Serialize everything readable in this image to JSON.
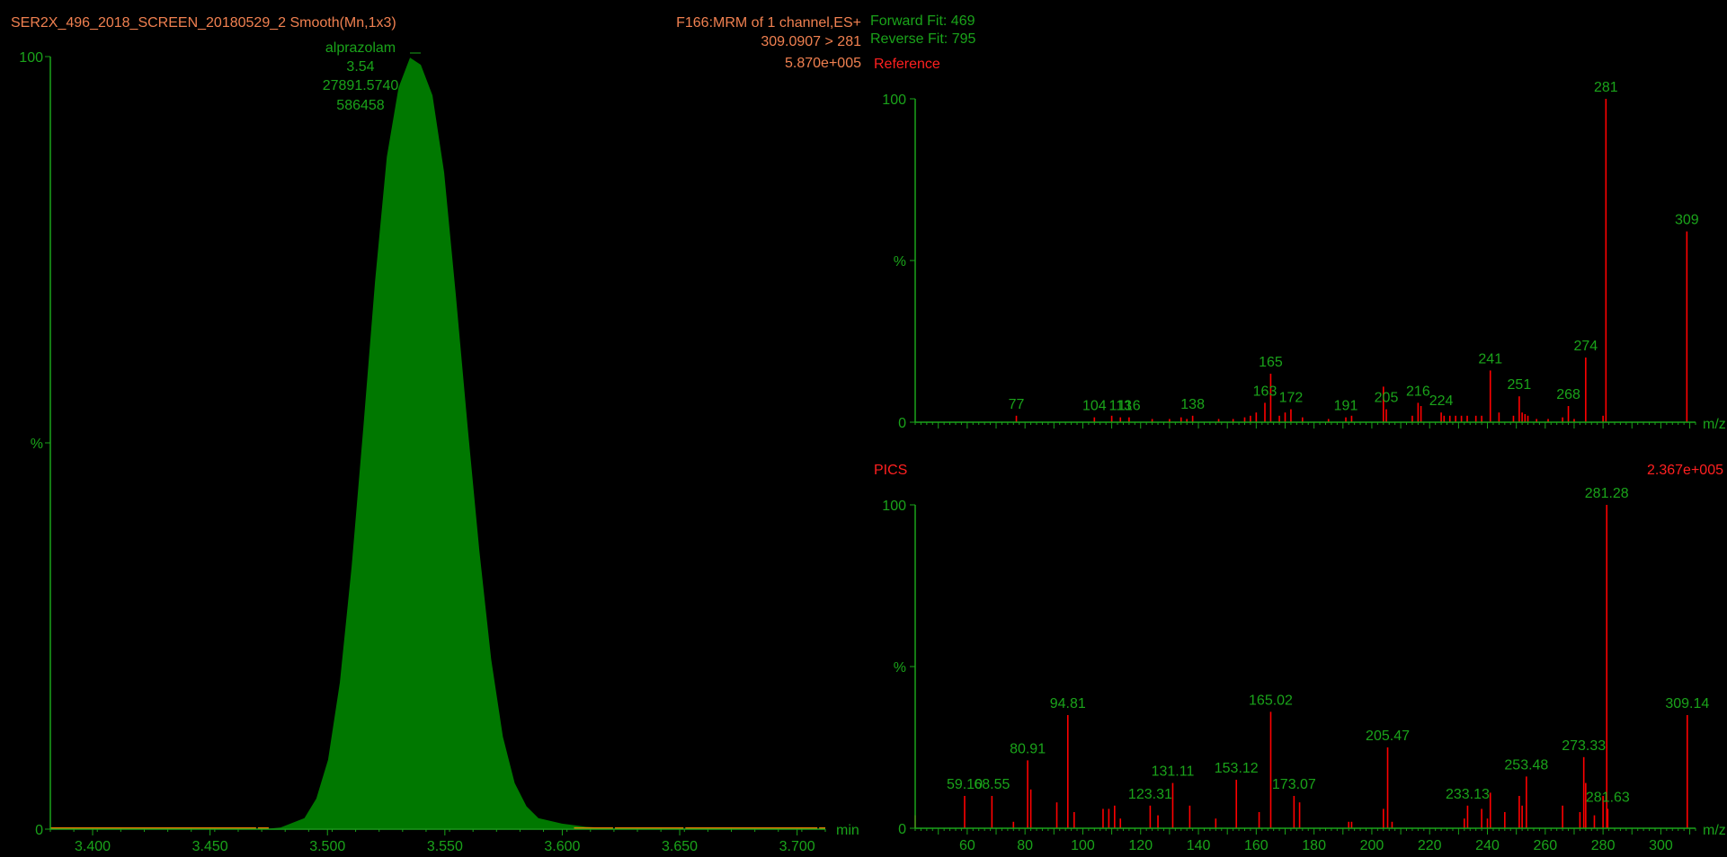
{
  "colors": {
    "background": "#000000",
    "axis": "#1aa31a",
    "chromatogram_fill": "#007800",
    "chromatogram_line": "#000000",
    "peak_label": "#1aa31a",
    "spectrum_line": "#ff0000",
    "spectrum_label": "#1aa31a",
    "header_orange": "#f08050",
    "header_green": "#1aa31a",
    "header_red": "#ff2020",
    "baseline_orange": "#f08000"
  },
  "chromatogram": {
    "header": {
      "title": "SER2X_496_2018_SCREEN_20180529_2 Smooth(Mn,1x3)",
      "function": "F166:MRM of 1 channel,ES+",
      "transition": "309.0907 > 281",
      "intensity": "5.870e+005"
    },
    "peak_annotation": {
      "name": "alprazolam",
      "rt": "3.54",
      "area": "27891.5740",
      "height": "586458"
    },
    "y_axis": {
      "top_label": "100",
      "mid_label": "%",
      "zero_label": "0"
    },
    "x_axis": {
      "unit": "min",
      "ticks": [
        "3.400",
        "3.450",
        "3.500",
        "3.550",
        "3.600",
        "3.650",
        "3.700"
      ]
    }
  },
  "fit": {
    "forward": "Forward Fit: 469",
    "reverse": "Reverse Fit: 795"
  },
  "reference": {
    "title": "Reference",
    "y_axis": {
      "top_label": "100",
      "mid_label": "%",
      "zero_label": "0"
    },
    "x_unit": "m/z"
  },
  "pics": {
    "title": "PICS",
    "intensity": "2.367e+005",
    "y_axis": {
      "top_label": "100",
      "mid_label": "%",
      "zero_label": "0"
    },
    "x_unit": "m/z",
    "x_ticks": [
      "60",
      "80",
      "100",
      "120",
      "140",
      "160",
      "180",
      "200",
      "220",
      "240",
      "260",
      "280",
      "300"
    ]
  },
  "chart_data": [
    {
      "type": "area",
      "xlim": [
        3.382,
        3.712
      ],
      "ylim": [
        0,
        100
      ],
      "x": [
        3.382,
        3.47,
        3.48,
        3.49,
        3.495,
        3.5,
        3.505,
        3.51,
        3.515,
        3.52,
        3.525,
        3.53,
        3.535,
        3.54,
        3.545,
        3.55,
        3.555,
        3.56,
        3.565,
        3.57,
        3.575,
        3.58,
        3.585,
        3.59,
        3.6,
        3.61,
        3.62,
        3.65,
        3.712
      ],
      "y": [
        0,
        0,
        0.3,
        1.5,
        4,
        9,
        19,
        34,
        52,
        71,
        87,
        96,
        100,
        99,
        95,
        85,
        69,
        52,
        36,
        22,
        12,
        6,
        3,
        1.5,
        0.8,
        0.4,
        0.2,
        0,
        0
      ]
    },
    {
      "type": "bar",
      "title": "Reference",
      "xlim": [
        42,
        312
      ],
      "ylim": [
        0,
        100
      ],
      "x": [
        77,
        104,
        110,
        113,
        116,
        124,
        130,
        134,
        136,
        138,
        147,
        152,
        156,
        158,
        160,
        163,
        165,
        168,
        170,
        172,
        176,
        185,
        191,
        193,
        204,
        205,
        214,
        216,
        217,
        224,
        225,
        227,
        229,
        231,
        233,
        236,
        238,
        241,
        244,
        249,
        251,
        252,
        253,
        254,
        257,
        261,
        266,
        268,
        270,
        274,
        280,
        281,
        309
      ],
      "values": [
        2,
        1.5,
        2,
        1.5,
        1.5,
        1,
        1,
        1.5,
        1,
        2,
        1,
        1,
        1.5,
        2,
        3,
        6,
        15,
        2,
        3,
        4,
        1.5,
        1,
        1.5,
        2,
        11,
        4,
        2,
        6,
        5,
        3,
        2,
        2,
        2,
        2,
        2,
        2,
        2,
        16,
        3,
        2,
        8,
        3,
        2.5,
        2,
        1,
        1,
        1.5,
        5,
        1,
        20,
        2,
        100,
        59
      ],
      "labels": [
        {
          "x": 77,
          "text": "77"
        },
        {
          "x": 104,
          "text": "104"
        },
        {
          "x": 113,
          "text": "113"
        },
        {
          "x": 116,
          "text": "116"
        },
        {
          "x": 138,
          "text": "138"
        },
        {
          "x": 163,
          "text": "163"
        },
        {
          "x": 165,
          "text": "165"
        },
        {
          "x": 172,
          "text": "172"
        },
        {
          "x": 191,
          "text": "191"
        },
        {
          "x": 205,
          "text": "205"
        },
        {
          "x": 216,
          "text": "216"
        },
        {
          "x": 224,
          "text": "224"
        },
        {
          "x": 241,
          "text": "241"
        },
        {
          "x": 251,
          "text": "251"
        },
        {
          "x": 268,
          "text": "268"
        },
        {
          "x": 274,
          "text": "274"
        },
        {
          "x": 281,
          "text": "281"
        },
        {
          "x": 309,
          "text": "309"
        }
      ]
    },
    {
      "type": "bar",
      "title": "PICS",
      "xlim": [
        42,
        312
      ],
      "ylim": [
        0,
        100
      ],
      "x": [
        42,
        59.1,
        68.55,
        76,
        80.91,
        82,
        91,
        94.81,
        97,
        107,
        109,
        111,
        113,
        123.31,
        126,
        131.11,
        137,
        146,
        153.12,
        161,
        165.02,
        173.07,
        175,
        192,
        193,
        204,
        205.47,
        207,
        232,
        233.13,
        238,
        240,
        241,
        246,
        251,
        252,
        253.48,
        266,
        272,
        273.33,
        274,
        277,
        280,
        281.28,
        281.63,
        309.14
      ],
      "values": [
        4,
        10,
        10,
        2,
        21,
        12,
        8,
        35,
        5,
        6,
        6,
        7,
        3,
        7,
        4,
        14,
        7,
        3,
        15,
        5,
        36,
        10,
        8,
        2,
        2,
        6,
        25,
        2,
        3,
        7,
        6,
        3,
        11,
        5,
        10,
        7,
        16,
        7,
        5,
        22,
        14,
        4,
        10,
        100,
        6,
        35
      ],
      "labels": [
        {
          "x": 59.1,
          "text": "59.10"
        },
        {
          "x": 68.55,
          "text": "68.55"
        },
        {
          "x": 80.91,
          "text": "80.91"
        },
        {
          "x": 94.81,
          "text": "94.81"
        },
        {
          "x": 123.31,
          "text": "123.31"
        },
        {
          "x": 131.11,
          "text": "131.11"
        },
        {
          "x": 153.12,
          "text": "153.12"
        },
        {
          "x": 165.02,
          "text": "165.02"
        },
        {
          "x": 173.07,
          "text": "173.07"
        },
        {
          "x": 205.47,
          "text": "205.47"
        },
        {
          "x": 233.13,
          "text": "233.13"
        },
        {
          "x": 253.48,
          "text": "253.48"
        },
        {
          "x": 273.33,
          "text": "273.33"
        },
        {
          "x": 281.28,
          "text": "281.28"
        },
        {
          "x": 281.63,
          "text": "281.63"
        },
        {
          "x": 309.14,
          "text": "309.14"
        }
      ]
    }
  ]
}
